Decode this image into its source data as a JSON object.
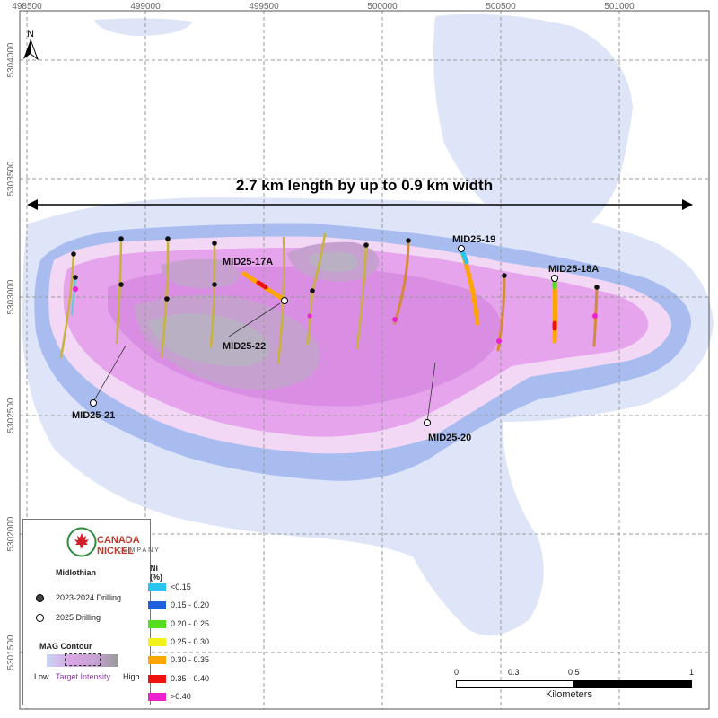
{
  "map": {
    "heading": "2.7 km length by up to 0.9 km width",
    "easting_ticks": [
      "498500",
      "499000",
      "499500",
      "500000",
      "500500",
      "501000"
    ],
    "northing_ticks": [
      "5304000",
      "5303500",
      "5303000",
      "5302500",
      "5302000",
      "5301500"
    ],
    "north_label": "N",
    "hole_labels": {
      "mid25_17a": "MID25-17A",
      "mid25_22": "MID25-22",
      "mid25_21": "MID25-21",
      "mid25_20": "MID25-20",
      "mid25_19": "MID25-19",
      "mid25_18a": "MID25-18A"
    }
  },
  "legend": {
    "company_line1": "CANADA NICKEL",
    "company_line2": "COMPANY",
    "project_title": "Midlothian",
    "drilling_old": "2023-2024 Drilling",
    "drilling_new": "2025 Drilling",
    "ni_title": "Ni (%)",
    "ni_classes": [
      {
        "label": "<0.15",
        "color": "#29c5f0"
      },
      {
        "label": "0.15 - 0.20",
        "color": "#1f5fe0"
      },
      {
        "label": "0.20 - 0.25",
        "color": "#55dd22"
      },
      {
        "label": "0.25 - 0.30",
        "color": "#f2f21a"
      },
      {
        "label": "0.30 - 0.35",
        "color": "#ffa500"
      },
      {
        "label": "0.35 - 0.40",
        "color": "#ee1111"
      },
      {
        "label": ">0.40",
        "color": "#ee22cc"
      }
    ],
    "mag_title": "MAG Contour",
    "mag_low": "Low",
    "mag_target": "Target Intensity",
    "mag_high": "High"
  },
  "scalebar": {
    "ticks": [
      "0",
      "0.3",
      "0.5",
      "1"
    ],
    "units": "Kilometers"
  },
  "colors": {
    "mag_outer": "#dfe5f8",
    "mag_blue": "#a9bcf0",
    "mag_pale_pink": "#f3d8f6",
    "mag_pink": "#e6a4ec",
    "mag_magenta": "#d98ee3",
    "mag_grey_pink": "#c6a0cf",
    "mag_grey": "#b9b0c4"
  }
}
